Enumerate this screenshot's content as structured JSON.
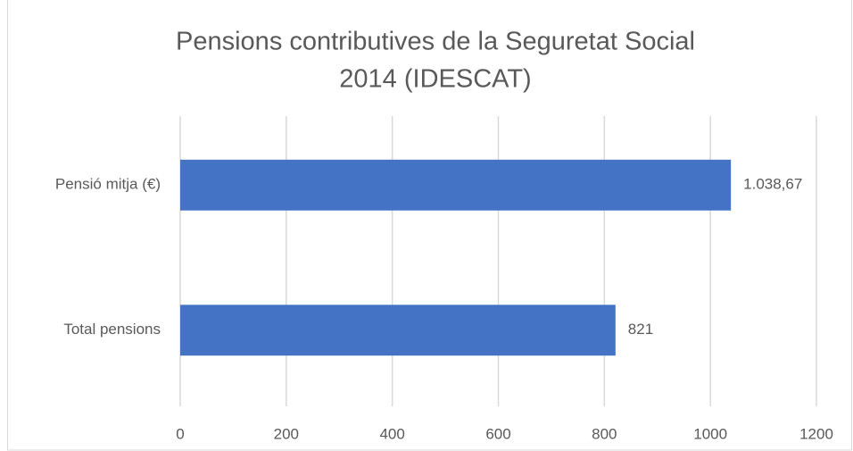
{
  "chart_data": {
    "type": "bar",
    "orientation": "horizontal",
    "title": [
      "Pensions contributives de la Seguretat Social",
      "2014 (IDESCAT)"
    ],
    "categories": [
      "Pensió mitja (€)",
      "Total pensions"
    ],
    "values": [
      1038.67,
      821
    ],
    "value_labels": [
      "1.038,67",
      "821"
    ],
    "color": "#4472c4",
    "xlim": [
      0,
      1200
    ],
    "xticks": [
      0,
      200,
      400,
      600,
      800,
      1000,
      1200
    ],
    "grid": true
  }
}
